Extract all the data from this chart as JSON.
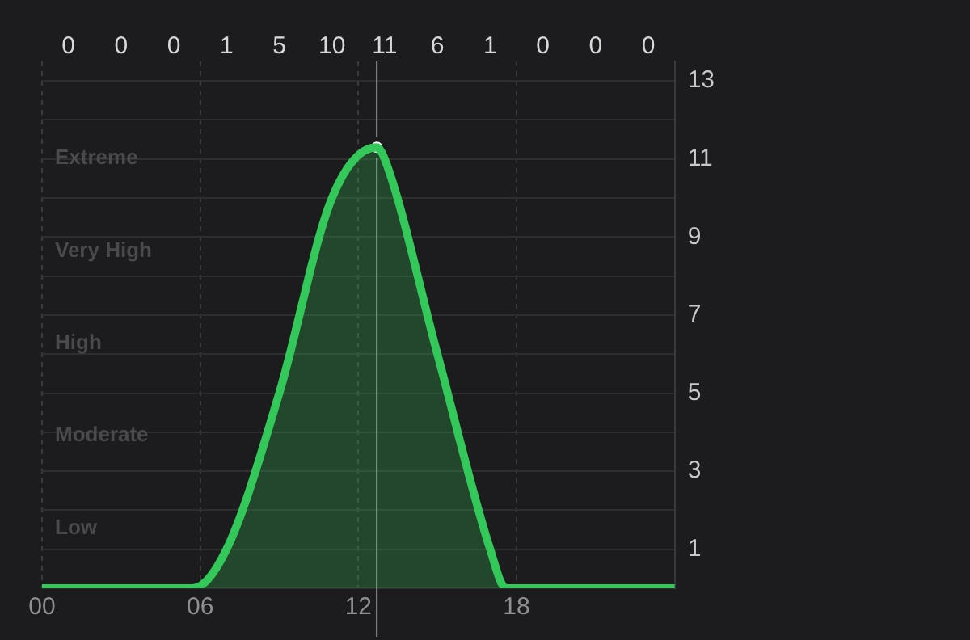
{
  "chart_data": {
    "type": "area",
    "xlim": [
      0,
      24
    ],
    "xticks": [
      {
        "value": 0,
        "label": "00"
      },
      {
        "value": 6,
        "label": "06"
      },
      {
        "value": 12,
        "label": "12"
      },
      {
        "value": 18,
        "label": "18"
      },
      {
        "value": 24,
        "label": null
      }
    ],
    "ylim": [
      0,
      13.5
    ],
    "yticks": [
      {
        "value": 0,
        "label": null
      },
      1,
      {
        "value": 2,
        "label": null
      },
      3,
      {
        "value": 4,
        "label": null
      },
      5,
      {
        "value": 6,
        "label": null
      },
      7,
      {
        "value": 8,
        "label": null
      },
      9,
      {
        "value": 10,
        "label": null
      },
      11,
      {
        "value": 12,
        "label": null
      },
      13
    ],
    "grid": true,
    "legend": false,
    "line_style": "solid",
    "series": [
      {
        "type": "area",
        "x": [
          0,
          1,
          3,
          5,
          5.7,
          7,
          9,
          11,
          12.7,
          13,
          15,
          17,
          17.6,
          19,
          21,
          23,
          24
        ],
        "values": [
          0,
          0,
          0,
          0,
          0,
          1,
          5,
          10,
          11.3,
          11,
          6,
          1,
          0,
          0,
          0,
          0,
          0
        ],
        "color": "#34c759",
        "marker": "none"
      },
      {
        "type": "scatter",
        "x": [
          12.7
        ],
        "values": [
          11.3
        ],
        "color": "#ffffff",
        "marker": "circle"
      }
    ],
    "ref_lines": [
      {
        "axis": "x",
        "value": 12.7,
        "color": "#8e8e93"
      }
    ],
    "annotations": [
      "Extreme",
      "Very High",
      "High",
      "Moderate",
      "Low",
      "0",
      "0",
      "0",
      "1",
      "5",
      "10",
      "11",
      "6",
      "1",
      "0",
      "0",
      "0"
    ]
  }
}
